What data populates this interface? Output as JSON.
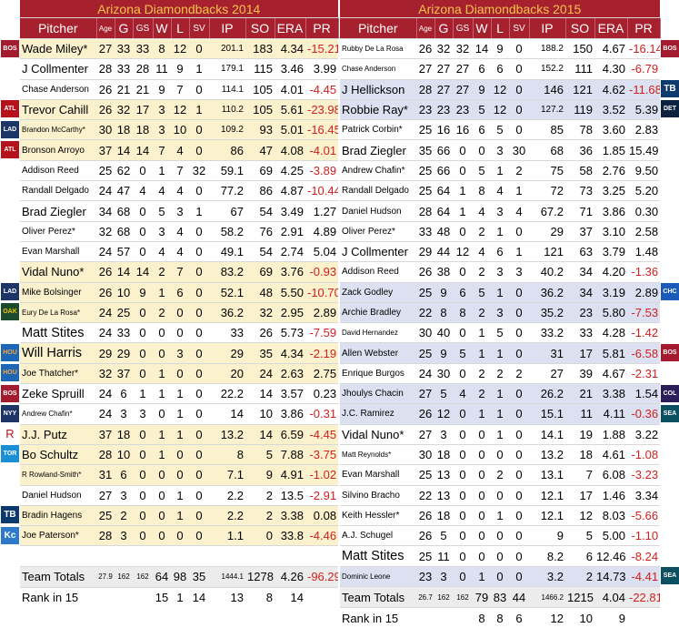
{
  "left": {
    "title": "Arizona Diamondbacks  2014",
    "headers": [
      "Pitcher",
      "Age",
      "G",
      "GS",
      "W",
      "L",
      "SV",
      "IP",
      "SO",
      "ERA",
      "PR"
    ],
    "rows": [
      {
        "name": "Wade Miley*",
        "size": "n",
        "age": "27",
        "g": "33",
        "gs": "33",
        "w": "8",
        "l": "12",
        "sv": "0",
        "ip": "201.1",
        "so": "183",
        "era": "4.34",
        "pr": "-15.21",
        "bg": "cream"
      },
      {
        "name": "J Collmenter",
        "size": "n",
        "age": "28",
        "g": "33",
        "gs": "28",
        "w": "11",
        "l": "9",
        "sv": "1",
        "ip": "179.1",
        "so": "115",
        "era": "3.46",
        "pr": "3.99",
        "bg": "white"
      },
      {
        "name": "Chase Anderson",
        "size": "s",
        "age": "26",
        "g": "21",
        "gs": "21",
        "w": "9",
        "l": "7",
        "sv": "0",
        "ip": "114.1",
        "so": "105",
        "era": "4.01",
        "pr": "-4.45",
        "bg": "white"
      },
      {
        "name": "Trevor Cahill",
        "size": "n",
        "age": "26",
        "g": "32",
        "gs": "17",
        "w": "3",
        "l": "12",
        "sv": "1",
        "ip": "110.2",
        "so": "105",
        "era": "5.61",
        "pr": "-23.98",
        "bg": "cream"
      },
      {
        "name": "Brandon McCarthy*",
        "size": "xs",
        "age": "30",
        "g": "18",
        "gs": "18",
        "w": "3",
        "l": "10",
        "sv": "0",
        "ip": "109.2",
        "so": "93",
        "era": "5.01",
        "pr": "-16.45",
        "bg": "cream"
      },
      {
        "name": "Bronson Arroyo",
        "size": "s",
        "age": "37",
        "g": "14",
        "gs": "14",
        "w": "7",
        "l": "4",
        "sv": "0",
        "ip": "86",
        "so": "47",
        "era": "4.08",
        "pr": "-4.01",
        "bg": "cream"
      },
      {
        "name": "Addison Reed",
        "size": "s",
        "age": "25",
        "g": "62",
        "gs": "0",
        "w": "1",
        "l": "7",
        "sv": "32",
        "ip": "59.1",
        "so": "69",
        "era": "4.25",
        "pr": "-3.89",
        "bg": "white"
      },
      {
        "name": "Randall Delgado",
        "size": "s",
        "age": "24",
        "g": "47",
        "gs": "4",
        "w": "4",
        "l": "4",
        "sv": "0",
        "ip": "77.2",
        "so": "86",
        "era": "4.87",
        "pr": "-10.44",
        "bg": "white"
      },
      {
        "name": "Brad Ziegler",
        "size": "n",
        "age": "34",
        "g": "68",
        "gs": "0",
        "w": "5",
        "l": "3",
        "sv": "1",
        "ip": "67",
        "so": "54",
        "era": "3.49",
        "pr": "1.27",
        "bg": "white"
      },
      {
        "name": "Oliver Perez*",
        "size": "s",
        "age": "32",
        "g": "68",
        "gs": "0",
        "w": "3",
        "l": "4",
        "sv": "0",
        "ip": "58.2",
        "so": "76",
        "era": "2.91",
        "pr": "4.89",
        "bg": "white"
      },
      {
        "name": "Evan Marshall",
        "size": "s",
        "age": "24",
        "g": "57",
        "gs": "0",
        "w": "4",
        "l": "4",
        "sv": "0",
        "ip": "49.1",
        "so": "54",
        "era": "2.74",
        "pr": "5.04",
        "bg": "white"
      },
      {
        "name": "Vidal Nuno*",
        "size": "n",
        "age": "26",
        "g": "14",
        "gs": "14",
        "w": "2",
        "l": "7",
        "sv": "0",
        "ip": "83.2",
        "so": "69",
        "era": "3.76",
        "pr": "-0.93",
        "bg": "cream"
      },
      {
        "name": "Mike Bolsinger",
        "size": "s",
        "age": "26",
        "g": "10",
        "gs": "9",
        "w": "1",
        "l": "6",
        "sv": "0",
        "ip": "52.1",
        "so": "48",
        "era": "5.50",
        "pr": "-10.70",
        "bg": "cream"
      },
      {
        "name": "Eury De La Rosa*",
        "size": "xs",
        "age": "24",
        "g": "25",
        "gs": "0",
        "w": "2",
        "l": "0",
        "sv": "0",
        "ip": "36.2",
        "so": "32",
        "era": "2.95",
        "pr": "2.89",
        "bg": "cream"
      },
      {
        "name": "Matt Stites",
        "size": "l",
        "age": "24",
        "g": "33",
        "gs": "0",
        "w": "0",
        "l": "0",
        "sv": "0",
        "ip": "33",
        "so": "26",
        "era": "5.73",
        "pr": "-7.59",
        "bg": "white"
      },
      {
        "name": "Will Harris",
        "size": "l",
        "age": "29",
        "g": "29",
        "gs": "0",
        "w": "0",
        "l": "3",
        "sv": "0",
        "ip": "29",
        "so": "35",
        "era": "4.34",
        "pr": "-2.19",
        "bg": "cream"
      },
      {
        "name": "Joe Thatcher*",
        "size": "s",
        "age": "32",
        "g": "37",
        "gs": "0",
        "w": "1",
        "l": "0",
        "sv": "0",
        "ip": "20",
        "so": "24",
        "era": "2.63",
        "pr": "2.75",
        "bg": "cream"
      },
      {
        "name": "Zeke Spruill",
        "size": "n",
        "age": "24",
        "g": "6",
        "gs": "1",
        "w": "1",
        "l": "1",
        "sv": "0",
        "ip": "22.2",
        "so": "14",
        "era": "3.57",
        "pr": "0.23",
        "bg": "white"
      },
      {
        "name": "Andrew Chafin*",
        "size": "xs",
        "age": "24",
        "g": "3",
        "gs": "3",
        "w": "0",
        "l": "1",
        "sv": "0",
        "ip": "14",
        "so": "10",
        "era": "3.86",
        "pr": "-0.31",
        "bg": "white"
      },
      {
        "name": "J.J. Putz",
        "size": "n",
        "age": "37",
        "g": "18",
        "gs": "0",
        "w": "1",
        "l": "1",
        "sv": "0",
        "ip": "13.2",
        "so": "14",
        "era": "6.59",
        "pr": "-4.45",
        "bg": "cream"
      },
      {
        "name": "Bo Schultz",
        "size": "n",
        "age": "28",
        "g": "10",
        "gs": "0",
        "w": "1",
        "l": "0",
        "sv": "0",
        "ip": "8",
        "so": "5",
        "era": "7.88",
        "pr": "-3.75",
        "bg": "cream"
      },
      {
        "name": "R Rowland-Smith*",
        "size": "xs",
        "age": "31",
        "g": "6",
        "gs": "0",
        "w": "0",
        "l": "0",
        "sv": "0",
        "ip": "7.1",
        "so": "9",
        "era": "4.91",
        "pr": "-1.02",
        "bg": "cream"
      },
      {
        "name": "Daniel Hudson",
        "size": "s",
        "age": "27",
        "g": "3",
        "gs": "0",
        "w": "0",
        "l": "1",
        "sv": "0",
        "ip": "2.2",
        "so": "2",
        "era": "13.5",
        "pr": "-2.91",
        "bg": "white"
      },
      {
        "name": "Bradin Hagens",
        "size": "s",
        "age": "25",
        "g": "2",
        "gs": "0",
        "w": "0",
        "l": "1",
        "sv": "0",
        "ip": "2.2",
        "so": "2",
        "era": "3.38",
        "pr": "0.08",
        "bg": "cream"
      },
      {
        "name": "Joe Paterson*",
        "size": "s",
        "age": "28",
        "g": "3",
        "gs": "0",
        "w": "0",
        "l": "0",
        "sv": "0",
        "ip": "1.1",
        "so": "0",
        "era": "33.8",
        "pr": "-4.46",
        "bg": "cream"
      },
      {
        "name": "",
        "size": "n",
        "age": "",
        "g": "",
        "gs": "",
        "w": "",
        "l": "",
        "sv": "",
        "ip": "",
        "so": "",
        "era": "",
        "pr": "",
        "bg": "white"
      }
    ],
    "totals": {
      "name": "Team Totals",
      "age": "27.9",
      "g": "162",
      "gs": "162",
      "w": "64",
      "l": "98",
      "sv": "35",
      "ip": "1444.1",
      "so": "1278",
      "era": "4.26",
      "pr": "-96.29"
    },
    "rank": {
      "name": "Rank in 15",
      "age": "",
      "g": "",
      "gs": "",
      "w": "15",
      "l": "1",
      "sv": "14",
      "ip": "13",
      "so": "8",
      "era": "14",
      "pr": ""
    }
  },
  "right": {
    "title": "Arizona Diamondbacks 2015",
    "headers": [
      "Pitcher",
      "Age",
      "G",
      "GS",
      "W",
      "L",
      "SV",
      "IP",
      "SO",
      "ERA",
      "PR"
    ],
    "rows": [
      {
        "name": "Rubby De La Rosa",
        "size": "xs",
        "age": "26",
        "g": "32",
        "gs": "32",
        "w": "14",
        "l": "9",
        "sv": "0",
        "ip": "188.2",
        "so": "150",
        "era": "4.67",
        "pr": "-16.14",
        "bg": "white"
      },
      {
        "name": "Chase Anderson",
        "size": "xs",
        "age": "27",
        "g": "27",
        "gs": "27",
        "w": "6",
        "l": "6",
        "sv": "0",
        "ip": "152.2",
        "so": "111",
        "era": "4.30",
        "pr": "-6.79",
        "bg": "white"
      },
      {
        "name": "J Hellickson",
        "size": "n",
        "age": "28",
        "g": "27",
        "gs": "27",
        "w": "9",
        "l": "12",
        "sv": "0",
        "ip": "146",
        "so": "121",
        "era": "4.62",
        "pr": "-11.68",
        "bg": "blue"
      },
      {
        "name": "Robbie Ray*",
        "size": "n",
        "age": "23",
        "g": "23",
        "gs": "23",
        "w": "5",
        "l": "12",
        "sv": "0",
        "ip": "127.2",
        "so": "119",
        "era": "3.52",
        "pr": "5.39",
        "bg": "blue"
      },
      {
        "name": "Patrick Corbin*",
        "size": "s",
        "age": "25",
        "g": "16",
        "gs": "16",
        "w": "6",
        "l": "5",
        "sv": "0",
        "ip": "85",
        "so": "78",
        "era": "3.60",
        "pr": "2.83",
        "bg": "white"
      },
      {
        "name": "Brad Ziegler",
        "size": "n",
        "age": "35",
        "g": "66",
        "gs": "0",
        "w": "0",
        "l": "3",
        "sv": "30",
        "ip": "68",
        "so": "36",
        "era": "1.85",
        "pr": "15.49",
        "bg": "white"
      },
      {
        "name": "Andrew Chafin*",
        "size": "s",
        "age": "25",
        "g": "66",
        "gs": "0",
        "w": "5",
        "l": "1",
        "sv": "2",
        "ip": "75",
        "so": "58",
        "era": "2.76",
        "pr": "9.50",
        "bg": "white"
      },
      {
        "name": "Randall Delgado",
        "size": "s",
        "age": "25",
        "g": "64",
        "gs": "1",
        "w": "8",
        "l": "4",
        "sv": "1",
        "ip": "72",
        "so": "73",
        "era": "3.25",
        "pr": "5.20",
        "bg": "white"
      },
      {
        "name": "Daniel Hudson",
        "size": "s",
        "age": "28",
        "g": "64",
        "gs": "1",
        "w": "4",
        "l": "3",
        "sv": "4",
        "ip": "67.2",
        "so": "71",
        "era": "3.86",
        "pr": "0.30",
        "bg": "white"
      },
      {
        "name": "Oliver Perez*",
        "size": "s",
        "age": "33",
        "g": "48",
        "gs": "0",
        "w": "2",
        "l": "1",
        "sv": "0",
        "ip": "29",
        "so": "37",
        "era": "3.10",
        "pr": "2.58",
        "bg": "white"
      },
      {
        "name": "J Collmenter",
        "size": "n",
        "age": "29",
        "g": "44",
        "gs": "12",
        "w": "4",
        "l": "6",
        "sv": "1",
        "ip": "121",
        "so": "63",
        "era": "3.79",
        "pr": "1.48",
        "bg": "white"
      },
      {
        "name": "Addison Reed",
        "size": "s",
        "age": "26",
        "g": "38",
        "gs": "0",
        "w": "2",
        "l": "3",
        "sv": "3",
        "ip": "40.2",
        "so": "34",
        "era": "4.20",
        "pr": "-1.36",
        "bg": "white"
      },
      {
        "name": "Zack Godley",
        "size": "s",
        "age": "25",
        "g": "9",
        "gs": "6",
        "w": "5",
        "l": "1",
        "sv": "0",
        "ip": "36.2",
        "so": "34",
        "era": "3.19",
        "pr": "2.89",
        "bg": "blue"
      },
      {
        "name": "Archie Bradley",
        "size": "s",
        "age": "22",
        "g": "8",
        "gs": "8",
        "w": "2",
        "l": "3",
        "sv": "0",
        "ip": "35.2",
        "so": "23",
        "era": "5.80",
        "pr": "-7.53",
        "bg": "blue"
      },
      {
        "name": "David Hernandez",
        "size": "xs",
        "age": "30",
        "g": "40",
        "gs": "0",
        "w": "1",
        "l": "5",
        "sv": "0",
        "ip": "33.2",
        "so": "33",
        "era": "4.28",
        "pr": "-1.42",
        "bg": "white"
      },
      {
        "name": "Allen Webster",
        "size": "s",
        "age": "25",
        "g": "9",
        "gs": "5",
        "w": "1",
        "l": "1",
        "sv": "0",
        "ip": "31",
        "so": "17",
        "era": "5.81",
        "pr": "-6.58",
        "bg": "blue"
      },
      {
        "name": "Enrique Burgos",
        "size": "s",
        "age": "24",
        "g": "30",
        "gs": "0",
        "w": "2",
        "l": "2",
        "sv": "2",
        "ip": "27",
        "so": "39",
        "era": "4.67",
        "pr": "-2.31",
        "bg": "white"
      },
      {
        "name": "Jhoulys Chacin",
        "size": "s",
        "age": "27",
        "g": "5",
        "gs": "4",
        "w": "2",
        "l": "1",
        "sv": "0",
        "ip": "26.2",
        "so": "21",
        "era": "3.38",
        "pr": "1.54",
        "bg": "blue"
      },
      {
        "name": "J.C. Ramirez",
        "size": "s",
        "age": "26",
        "g": "12",
        "gs": "0",
        "w": "1",
        "l": "1",
        "sv": "0",
        "ip": "15.1",
        "so": "11",
        "era": "4.11",
        "pr": "-0.36",
        "bg": "blue"
      },
      {
        "name": "Vidal Nuno*",
        "size": "n",
        "age": "27",
        "g": "3",
        "gs": "0",
        "w": "0",
        "l": "1",
        "sv": "0",
        "ip": "14.1",
        "so": "19",
        "era": "1.88",
        "pr": "3.22",
        "bg": "white"
      },
      {
        "name": "Matt Reynolds*",
        "size": "xs",
        "age": "30",
        "g": "18",
        "gs": "0",
        "w": "0",
        "l": "0",
        "sv": "0",
        "ip": "13.2",
        "so": "18",
        "era": "4.61",
        "pr": "-1.08",
        "bg": "white"
      },
      {
        "name": "Evan Marshall",
        "size": "s",
        "age": "25",
        "g": "13",
        "gs": "0",
        "w": "0",
        "l": "2",
        "sv": "0",
        "ip": "13.1",
        "so": "7",
        "era": "6.08",
        "pr": "-3.23",
        "bg": "white"
      },
      {
        "name": "Silvino Bracho",
        "size": "s",
        "age": "22",
        "g": "13",
        "gs": "0",
        "w": "0",
        "l": "0",
        "sv": "0",
        "ip": "12.1",
        "so": "17",
        "era": "1.46",
        "pr": "3.34",
        "bg": "white"
      },
      {
        "name": "Keith Hessler*",
        "size": "s",
        "age": "26",
        "g": "18",
        "gs": "0",
        "w": "0",
        "l": "1",
        "sv": "0",
        "ip": "12.1",
        "so": "12",
        "era": "8.03",
        "pr": "-5.66",
        "bg": "white"
      },
      {
        "name": "A.J. Schugel",
        "size": "s",
        "age": "26",
        "g": "5",
        "gs": "0",
        "w": "0",
        "l": "0",
        "sv": "0",
        "ip": "9",
        "so": "5",
        "era": "5.00",
        "pr": "-1.10",
        "bg": "white"
      },
      {
        "name": "Matt Stites",
        "size": "l",
        "age": "25",
        "g": "11",
        "gs": "0",
        "w": "0",
        "l": "0",
        "sv": "0",
        "ip": "8.2",
        "so": "6",
        "era": "12.46",
        "pr": "-8.24",
        "bg": "white"
      },
      {
        "name": "Dominic Leone",
        "size": "xs",
        "age": "23",
        "g": "3",
        "gs": "0",
        "w": "1",
        "l": "0",
        "sv": "0",
        "ip": "3.2",
        "so": "2",
        "era": "14.73",
        "pr": "-4.41",
        "bg": "blue"
      }
    ],
    "totals": {
      "name": "Team Totals",
      "age": "26.7",
      "g": "162",
      "gs": "162",
      "w": "79",
      "l": "83",
      "sv": "44",
      "ip": "1466.2",
      "so": "1215",
      "era": "4.04",
      "pr": "-22.81"
    },
    "rank": {
      "name": "Rank in 15",
      "age": "",
      "g": "",
      "gs": "",
      "w": "8",
      "l": "8",
      "sv": "6",
      "ip": "12",
      "so": "10",
      "era": "9",
      "pr": ""
    }
  },
  "badges": {
    "left": [
      {
        "row": 0,
        "text": "BOS",
        "cls": "b-bos"
      },
      {
        "row": 3,
        "text": "ATL",
        "cls": "b-atl"
      },
      {
        "row": 4,
        "text": "LAD",
        "cls": "b-lad"
      },
      {
        "row": 5,
        "text": "ATL",
        "cls": "b-atl"
      },
      {
        "row": 12,
        "text": "LAD",
        "cls": "b-lad"
      },
      {
        "row": 13,
        "text": "OAK",
        "cls": "b-oak"
      },
      {
        "row": 15,
        "text": "HOU",
        "cls": "b-hou"
      },
      {
        "row": 16,
        "text": "HOU",
        "cls": "b-hou"
      },
      {
        "row": 17,
        "text": "BOS",
        "cls": "b-bos"
      },
      {
        "row": 18,
        "text": "NYY",
        "cls": "b-lad"
      },
      {
        "row": 19,
        "text": "R",
        "cls": "b-r"
      },
      {
        "row": 20,
        "text": "TOR",
        "cls": "b-tor"
      },
      {
        "row": 23,
        "text": "TB",
        "cls": "b-tb"
      },
      {
        "row": 24,
        "text": "Kc",
        "cls": "b-kc"
      }
    ],
    "right": [
      {
        "row": 0,
        "text": "BOS",
        "cls": "b-bos"
      },
      {
        "row": 2,
        "text": "TB",
        "cls": "b-tb"
      },
      {
        "row": 3,
        "text": "DET",
        "cls": "b-det"
      },
      {
        "row": 12,
        "text": "CHC",
        "cls": "b-chc"
      },
      {
        "row": 15,
        "text": "BOS",
        "cls": "b-bos"
      },
      {
        "row": 17,
        "text": "COL",
        "cls": "b-col"
      },
      {
        "row": 18,
        "text": "SEA",
        "cls": "b-sea"
      },
      {
        "row": 26,
        "text": "SEA",
        "cls": "b-sea"
      }
    ]
  }
}
